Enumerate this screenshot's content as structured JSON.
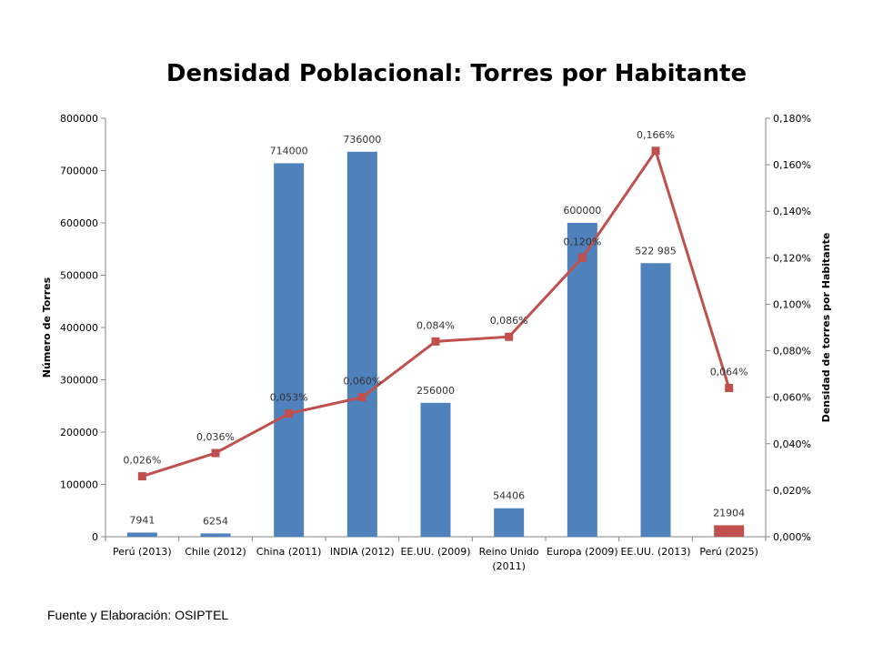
{
  "chart_data": {
    "type": "bar+line",
    "title": "Densidad Poblacional: Torres por Habitante",
    "categories": [
      "Perú (2013)",
      "Chile (2012)",
      "China (2011)",
      "INDIA (2012)",
      "EE.UU. (2009)",
      "Reino Unido (2011)",
      "Europa (2009)",
      "EE.UU. (2013)",
      "Perú (2025)"
    ],
    "category_lines": [
      [
        "Perú (2013)"
      ],
      [
        "Chile (2012)"
      ],
      [
        "China (2011)"
      ],
      [
        "INDIA (2012)"
      ],
      [
        "EE.UU. (2009)"
      ],
      [
        "Reino Unido",
        "(2011)"
      ],
      [
        "Europa (2009)"
      ],
      [
        "EE.UU. (2013)"
      ],
      [
        "Perú (2025)"
      ]
    ],
    "bars": {
      "values": [
        7941,
        6254,
        714000,
        736000,
        256000,
        54406,
        600000,
        522985,
        21904
      ],
      "labels": [
        "7941",
        "6254",
        "714000",
        "736000",
        "256000",
        "54406",
        "600000",
        "522 985",
        "21904"
      ],
      "colors": [
        "#4f81bd",
        "#4f81bd",
        "#4f81bd",
        "#4f81bd",
        "#4f81bd",
        "#4f81bd",
        "#4f81bd",
        "#4f81bd",
        "#c0504d"
      ]
    },
    "line": {
      "values": [
        0.026,
        0.036,
        0.053,
        0.06,
        0.084,
        0.086,
        0.12,
        0.166,
        0.064
      ],
      "labels": [
        "0,026%",
        "0,036%",
        "0,053%",
        "0,060%",
        "0,084%",
        "0,086%",
        "0,120%",
        "0,166%",
        "0,064%"
      ],
      "color": "#c0504d"
    },
    "y_left": {
      "label": "Número de Torres",
      "ylim": [
        0,
        800000
      ],
      "ticks": [
        "0",
        "100000",
        "200000",
        "300000",
        "400000",
        "500000",
        "600000",
        "700000",
        "800000"
      ]
    },
    "y_right": {
      "label": "Densidad de torres por Habitante",
      "ylim": [
        0,
        0.18
      ],
      "ticks": [
        "0,000%",
        "0,020%",
        "0,040%",
        "0,060%",
        "0,080%",
        "0,100%",
        "0,120%",
        "0,140%",
        "0,160%",
        "0,180%"
      ]
    },
    "grid": false,
    "legend": "none"
  },
  "source_note": "Fuente y Elaboración: OSIPTEL"
}
